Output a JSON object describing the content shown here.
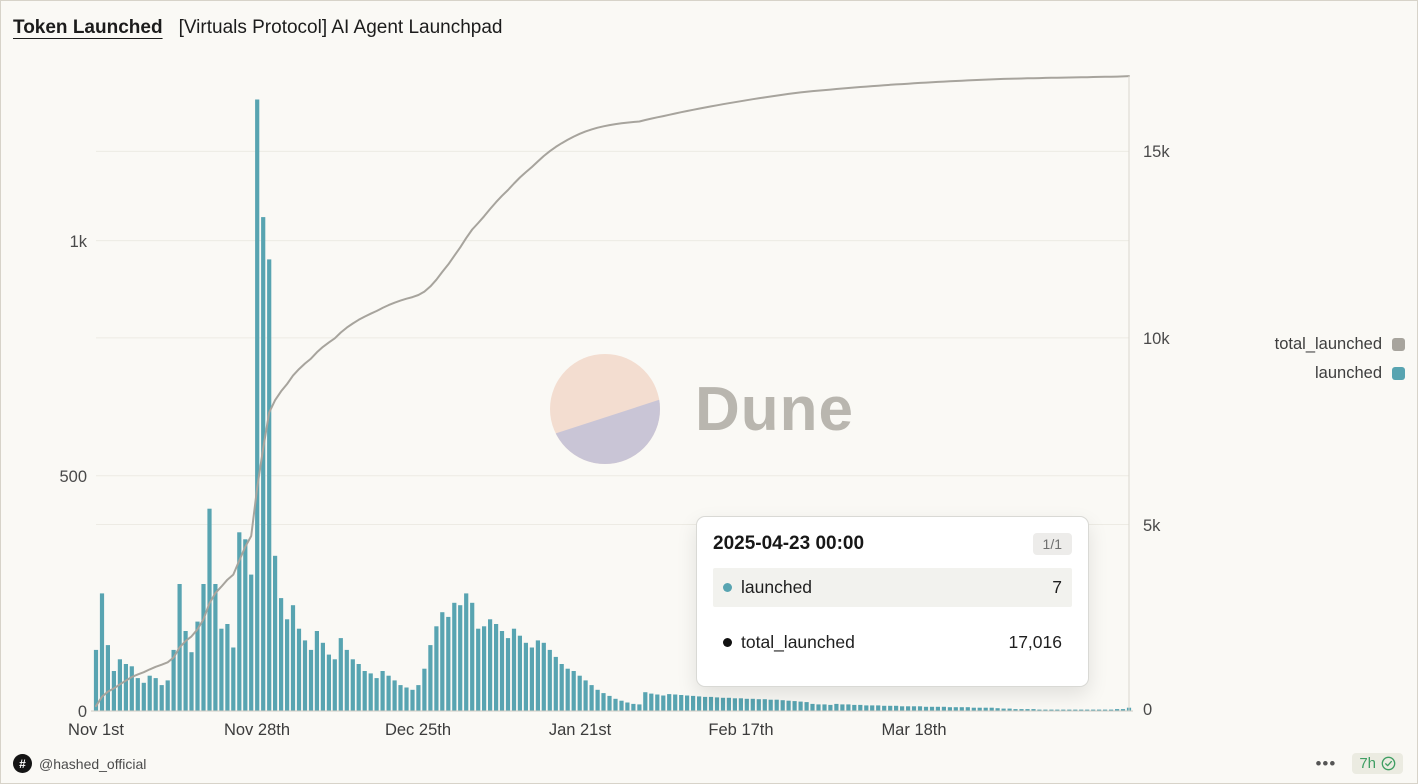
{
  "header": {
    "title": "Token Launched",
    "subtitle": "[Virtuals Protocol] AI Agent Launchpad"
  },
  "watermark": {
    "label": "Dune"
  },
  "legend": [
    {
      "label": "total_launched",
      "color": "#A7A49D"
    },
    {
      "label": "launched",
      "color": "#58A4B1"
    }
  ],
  "tooltip": {
    "date": "2025-04-23 00:00",
    "page": "1/1",
    "rows": [
      {
        "label": "launched",
        "value": "7",
        "color": "#58A4B1"
      },
      {
        "label": "total_launched",
        "value": "17,016",
        "color": "#111111"
      }
    ]
  },
  "footer": {
    "logo_glyph": "#",
    "handle": "@hashed_official",
    "menu_icon": "•••",
    "freshness": "7h"
  },
  "chart_data": {
    "type": "bar+line",
    "title": "Token Launched [Virtuals Protocol] AI Agent Launchpad",
    "start_date": "2024-11-01",
    "end_date": "2025-04-23",
    "frequency": "daily",
    "x_tick_labels": [
      "Nov 1st",
      "Nov 28th",
      "Dec 25th",
      "Jan 21st",
      "Feb 17th",
      "Mar 18th"
    ],
    "x_tick_day_index": [
      0,
      27,
      54,
      81,
      108,
      137
    ],
    "left_axis": {
      "series": "launched",
      "ticks": [
        "0",
        "500",
        "1k"
      ],
      "values": [
        0,
        500,
        1000
      ],
      "plot_max": 1350
    },
    "right_axis": {
      "series": "total_launched",
      "ticks": [
        "0",
        "5k",
        "10k",
        "15k"
      ],
      "values": [
        0,
        5000,
        10000,
        15000
      ],
      "plot_max": 17020
    },
    "grid": true,
    "legend_position": "right",
    "hover_point": {
      "date": "2025-04-23 00:00",
      "launched": 7,
      "total_launched": 17016
    },
    "series": [
      {
        "name": "launched",
        "type": "bar",
        "axis": "left",
        "color": "#58A4B1",
        "values": [
          130,
          250,
          140,
          85,
          110,
          100,
          95,
          70,
          60,
          75,
          70,
          55,
          65,
          130,
          270,
          170,
          125,
          190,
          270,
          430,
          270,
          175,
          185,
          135,
          380,
          365,
          290,
          1300,
          1050,
          960,
          330,
          240,
          195,
          225,
          175,
          150,
          130,
          170,
          145,
          120,
          110,
          155,
          130,
          110,
          100,
          85,
          80,
          70,
          85,
          75,
          65,
          55,
          50,
          45,
          55,
          90,
          140,
          180,
          210,
          200,
          230,
          225,
          250,
          230,
          175,
          180,
          195,
          185,
          170,
          155,
          175,
          160,
          145,
          135,
          150,
          145,
          130,
          115,
          100,
          90,
          85,
          75,
          65,
          55,
          45,
          38,
          32,
          26,
          22,
          18,
          15,
          14,
          40,
          37,
          35,
          33,
          36,
          35,
          34,
          33,
          32,
          31,
          30,
          30,
          29,
          28,
          28,
          27,
          27,
          26,
          26,
          25,
          25,
          24,
          24,
          23,
          22,
          21,
          20,
          19,
          15,
          14,
          14,
          13,
          15,
          14,
          14,
          13,
          13,
          12,
          12,
          12,
          11,
          11,
          11,
          10,
          10,
          10,
          10,
          9,
          9,
          9,
          9,
          8,
          8,
          8,
          8,
          7,
          7,
          7,
          7,
          6,
          5,
          5,
          4,
          4,
          4,
          4,
          3,
          3,
          3,
          3,
          3,
          3,
          3,
          3,
          3,
          3,
          3,
          3,
          3,
          4,
          4,
          7
        ]
      },
      {
        "name": "total_launched",
        "type": "line",
        "axis": "right",
        "color": "#A7A49D",
        "derivation": "cumulative sum of launched",
        "final_value": 17016
      }
    ]
  }
}
